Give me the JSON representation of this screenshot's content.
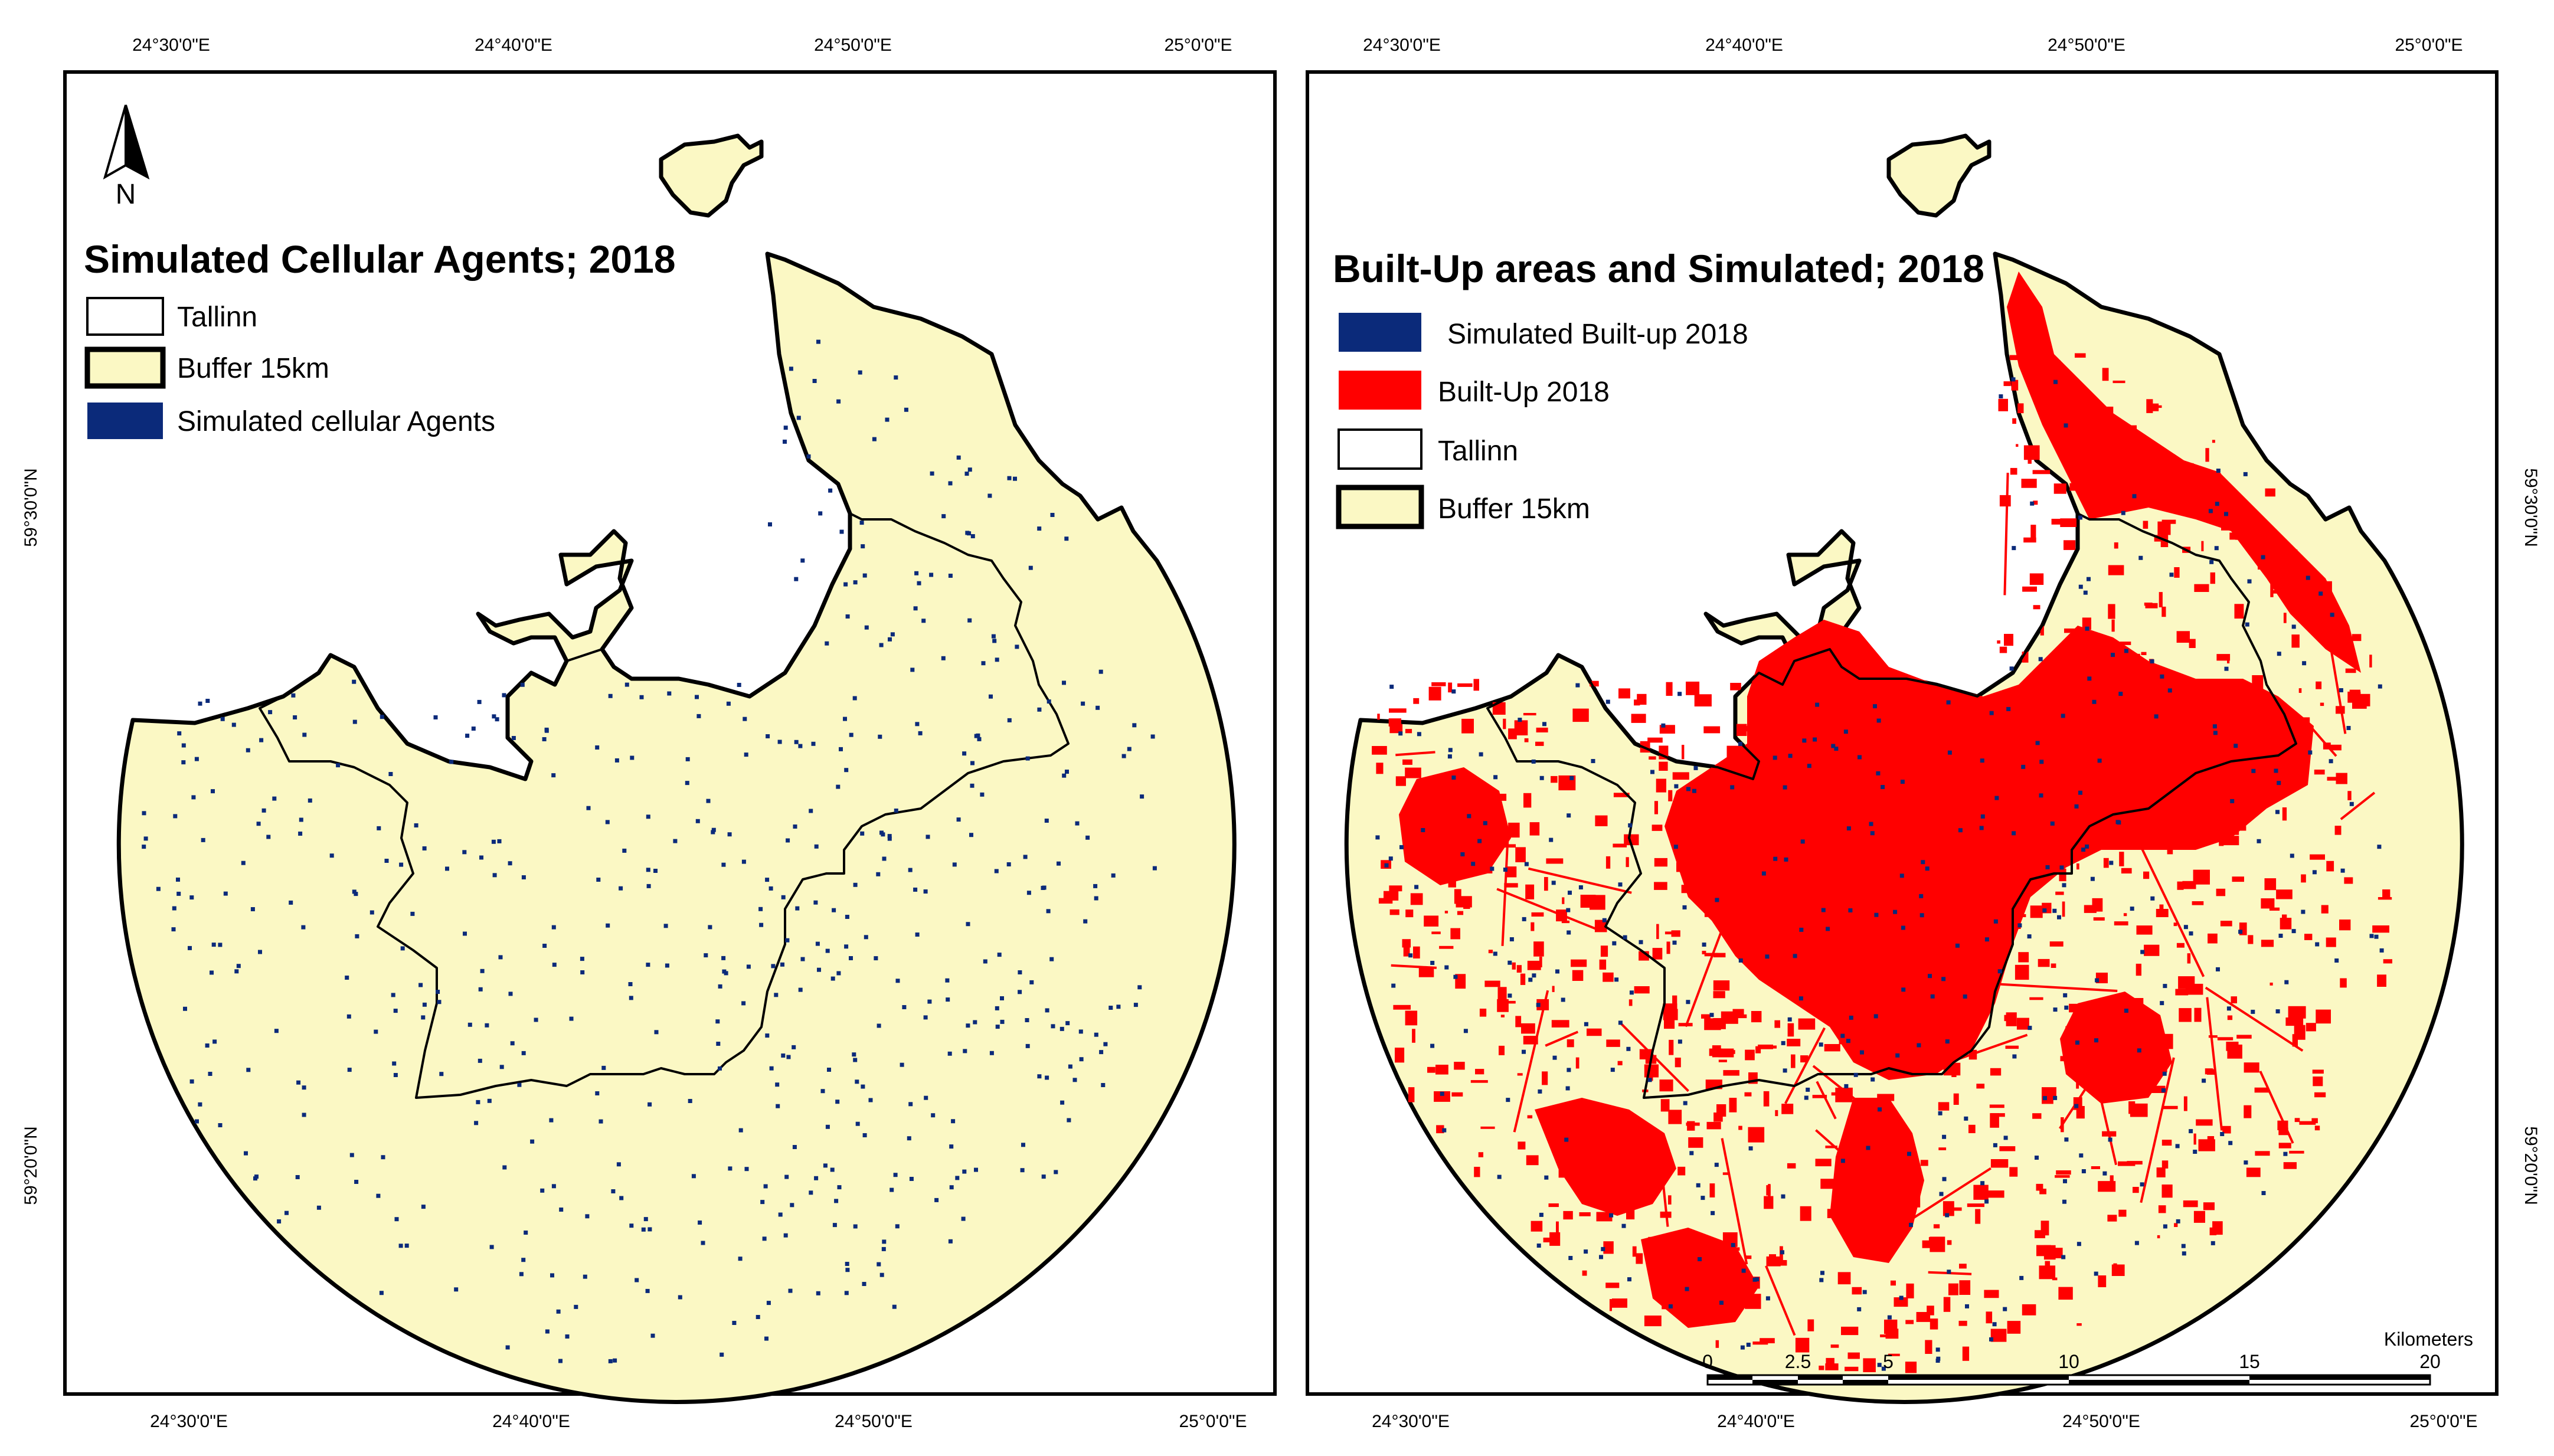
{
  "colors": {
    "buffer_fill": "#fbf8c4",
    "built_up": "#ff0000",
    "simulated": "#0b2a7a",
    "outline": "#000000"
  },
  "left_map": {
    "top_coords": [
      "24°30'0\"E",
      "24°40'0\"E",
      "24°50'0\"E",
      "25°0'0\"E"
    ],
    "bottom_coords": [
      "24°30'0\"E",
      "24°40'0\"E",
      "24°50'0\"E",
      "25°0'0\"E"
    ],
    "left_coords": [
      "59°30'0\"N",
      "59°20'0\"N"
    ],
    "north_arrow_label": "N",
    "legend": {
      "title": "Simulated Cellular Agents; 2018",
      "items": [
        {
          "label": "Tallinn",
          "symbol": "tallinn"
        },
        {
          "label": "Buffer 15km",
          "symbol": "buffer"
        },
        {
          "label": "Simulated cellular Agents",
          "symbol": "simulated"
        }
      ]
    }
  },
  "right_map": {
    "top_coords": [
      "24°30'0\"E",
      "24°40'0\"E",
      "24°50'0\"E",
      "25°0'0\"E"
    ],
    "bottom_coords": [
      "24°30'0\"E",
      "24°40'0\"E",
      "24°50'0\"E",
      "25°0'0\"E"
    ],
    "right_coords": [
      "59°30'0\"N",
      "59°20'0\"N"
    ],
    "legend": {
      "title": "Built-Up areas and Simulated; 2018",
      "items": [
        {
          "label": "Simulated Built-up 2018",
          "symbol": "simulated"
        },
        {
          "label": "Built-Up 2018",
          "symbol": "builtup"
        },
        {
          "label": "Tallinn",
          "symbol": "tallinn"
        },
        {
          "label": "Buffer 15km",
          "symbol": "buffer"
        }
      ]
    },
    "scale_bar": {
      "unit": "Kilometers",
      "ticks": [
        "0",
        "2.5",
        "5",
        "10",
        "15",
        "20"
      ]
    }
  }
}
